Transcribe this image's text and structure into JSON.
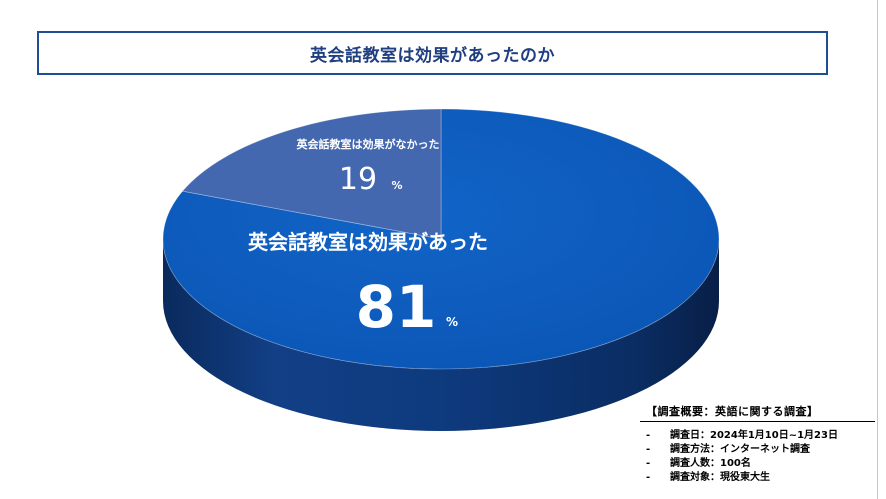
{
  "title": "英会話教室は効果があったのか",
  "chart_data": {
    "type": "pie",
    "title": "英会話教室は効果があったのか",
    "slices": [
      {
        "label": "英会話教室は効果があった",
        "value": 81,
        "unit": "%",
        "color": "#0b58b8"
      },
      {
        "label": "英会話教室は効果がなかった",
        "value": 19,
        "unit": "%",
        "color": "#4468b0"
      }
    ]
  },
  "survey": {
    "heading": "【調査概要：英語に関する調査】",
    "bullet": "-",
    "items": [
      "調査日：2024年1月10日~1月23日",
      "調査方法：インターネット調査",
      "調査人数：100名",
      "調査対象：現役東大生"
    ]
  }
}
